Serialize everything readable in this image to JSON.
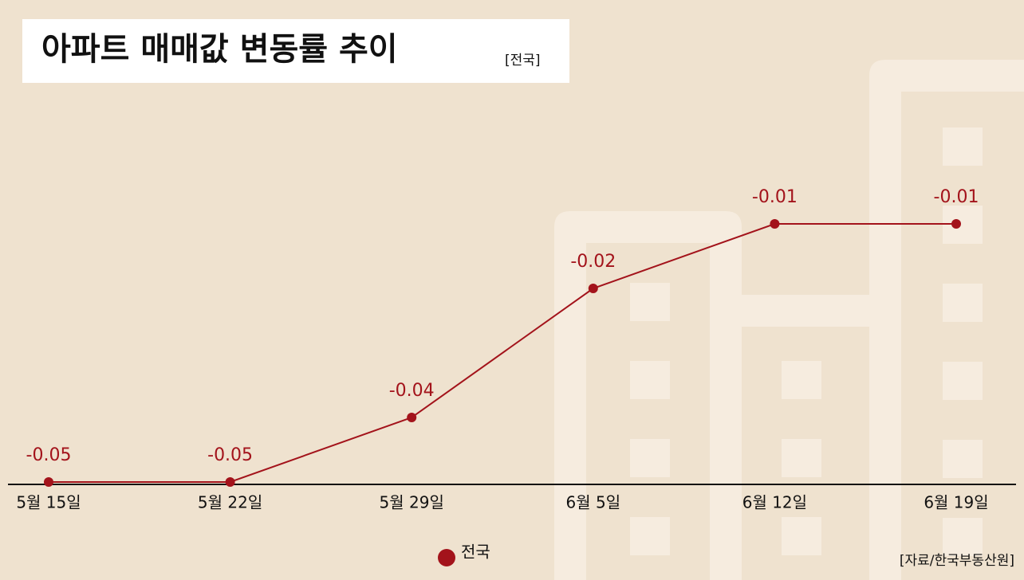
{
  "chart_data": {
    "type": "line",
    "title": "아파트 매매값 변동률 추이",
    "subtitle": "[전국]",
    "source": "[자료/한국부동산원]",
    "categories": [
      "5월 15일",
      "5월 22일",
      "5월 29일",
      "6월 5일",
      "6월 12일",
      "6월 19일"
    ],
    "series": [
      {
        "name": "전국",
        "color": "#a3131b",
        "values": [
          -0.05,
          -0.05,
          -0.04,
          -0.02,
          -0.01,
          -0.01
        ]
      }
    ]
  }
}
